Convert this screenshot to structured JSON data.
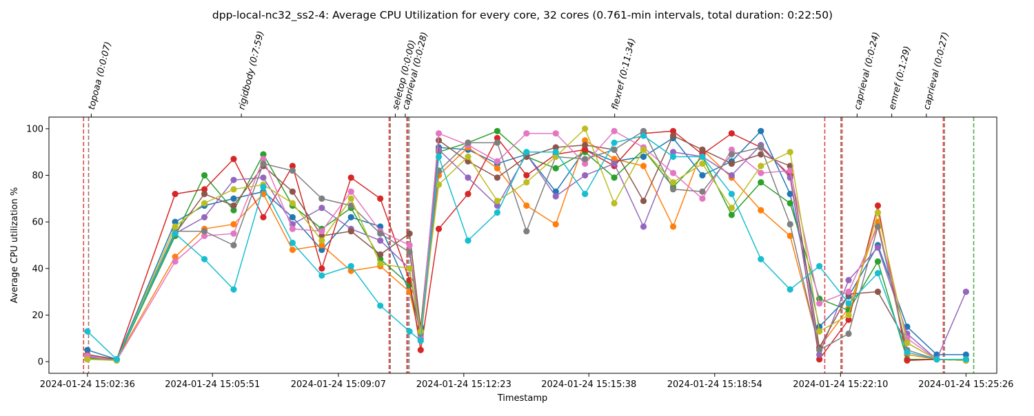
{
  "chart_data": {
    "type": "line",
    "title": "dpp-local-nc32_ss2-4: Average CPU Utilization for every core, 32 cores (0.761-min intervals, total duration: 0:22:50)",
    "xlabel": "Timestamp",
    "ylabel": "Average CPU utilization %",
    "ylim": [
      -5,
      105
    ],
    "yticks": [
      0,
      20,
      40,
      60,
      80,
      100
    ],
    "xtick_labels": [
      "2024-01-24 15:02:36",
      "2024-01-24 15:05:51",
      "2024-01-24 15:09:07",
      "2024-01-24 15:12:23",
      "2024-01-24 15:15:38",
      "2024-01-24 15:18:54",
      "2024-01-24 15:22:10",
      "2024-01-24 15:25:26"
    ],
    "xtick_positions": [
      0,
      3.25,
      6.52,
      9.78,
      13.03,
      16.3,
      19.57,
      22.83
    ],
    "x_unit": "minutes since first xtick",
    "grid": false,
    "legend": "none",
    "markers": "circle",
    "x": [
      0,
      0.76,
      2.28,
      3.04,
      3.8,
      4.57,
      5.33,
      6.09,
      6.85,
      7.61,
      8.37,
      8.66,
      9.13,
      9.89,
      10.65,
      11.41,
      12.17,
      12.93,
      13.69,
      14.45,
      15.22,
      15.98,
      16.74,
      17.5,
      18.26,
      19.02,
      19.78,
      20.54,
      21.3,
      22.07,
      22.83
    ],
    "series": [
      {
        "color": "#1f77b4",
        "values": [
          5,
          1,
          60,
          67,
          70,
          73,
          62,
          48,
          62,
          58,
          30,
          15,
          92,
          91,
          85,
          89,
          73,
          91,
          86,
          88,
          96,
          80,
          86,
          99,
          72,
          15,
          28,
          50,
          15,
          3,
          3
        ]
      },
      {
        "color": "#ff7f0e",
        "values": [
          2,
          1,
          45,
          57,
          59,
          72,
          48,
          50,
          39,
          41,
          30,
          9,
          80,
          92,
          83,
          67,
          59,
          95,
          87,
          84,
          58,
          91,
          79,
          65,
          54,
          6,
          23,
          60,
          3,
          1,
          0.5
        ]
      },
      {
        "color": "#2ca02c",
        "values": [
          1.5,
          0.5,
          54,
          80,
          65,
          89,
          67,
          57,
          66,
          44,
          33,
          12,
          90,
          94,
          99,
          88,
          83,
          90,
          79,
          91,
          75,
          88,
          63,
          77,
          68,
          27,
          22,
          43,
          1,
          1,
          0.5
        ]
      },
      {
        "color": "#d62728",
        "values": [
          3,
          1,
          72,
          74,
          87,
          62,
          84,
          40,
          79,
          70,
          35,
          5,
          57,
          72,
          96,
          80,
          89,
          91,
          84,
          98,
          99,
          89,
          98,
          92,
          80,
          1,
          18,
          67,
          0.5,
          1,
          0.5
        ]
      },
      {
        "color": "#9467bd",
        "values": [
          2,
          1,
          55,
          62,
          78,
          79,
          59,
          66,
          57,
          52,
          40,
          10,
          91,
          79,
          67,
          89,
          71,
          80,
          85,
          58,
          90,
          88,
          80,
          93,
          79,
          3,
          35,
          49,
          12,
          1,
          30
        ]
      },
      {
        "color": "#8c564b",
        "values": [
          3,
          1,
          55,
          72,
          67,
          84,
          73,
          54,
          56,
          46,
          55,
          14,
          95,
          86,
          79,
          88,
          92,
          93,
          91,
          69,
          97,
          91,
          85,
          89,
          84,
          6,
          29,
          30,
          8,
          1,
          1
        ]
      },
      {
        "color": "#e377c2",
        "values": [
          2.5,
          0.5,
          43,
          54,
          55,
          87,
          57,
          56,
          73,
          56,
          50,
          11,
          98,
          93,
          86,
          98,
          98,
          85,
          99,
          92,
          81,
          70,
          91,
          81,
          82,
          25,
          30,
          58,
          10,
          1,
          1
        ]
      },
      {
        "color": "#7f7f7f",
        "values": [
          1,
          1,
          56,
          56,
          50,
          85,
          82,
          70,
          67,
          55,
          47,
          12,
          82,
          94,
          94,
          56,
          88,
          87,
          91,
          99,
          74,
          73,
          89,
          92,
          59,
          5,
          12,
          58,
          5,
          1,
          1
        ]
      },
      {
        "color": "#bcbd22",
        "values": [
          1,
          0.5,
          58,
          68,
          74,
          76,
          68,
          52,
          70,
          42,
          40,
          13,
          76,
          88,
          69,
          77,
          88,
          100,
          68,
          91,
          77,
          85,
          66,
          84,
          90,
          13,
          20,
          64,
          8,
          1,
          0.5
        ]
      },
      {
        "color": "#17becf",
        "values": [
          13,
          1,
          55,
          44,
          31,
          75,
          51,
          37,
          41,
          24,
          13,
          9,
          88,
          52,
          64,
          90,
          90,
          72,
          94,
          97,
          88,
          88,
          72,
          44,
          31,
          41,
          25,
          38,
          4,
          1,
          1
        ]
      }
    ],
    "phase_markers": [
      {
        "label": "topoaa (0:0:07)",
        "x": 0.1,
        "start_color": "#d62728",
        "end_color": "#8c564b"
      },
      {
        "label": "rigidbody (0:7:59)",
        "x": 4.0,
        "start_color": "#d62728",
        "end_color": "#8c564b"
      },
      {
        "label": "seletop (0:0:00)",
        "x": 8.0,
        "start_color": "#8c564b",
        "end_color": "#8c564b"
      },
      {
        "label": "caprieval (0:0:28)",
        "x": 8.26,
        "start_color": "#8c564b",
        "end_color": "#8c564b"
      },
      {
        "label": "flexref (0:11:34)",
        "x": 13.7,
        "start_color": "#d62728",
        "end_color": "#8c564b"
      },
      {
        "label": "caprieval (0:0:24)",
        "x": 20.0,
        "start_color": "#d62728",
        "end_color": "#8c564b"
      },
      {
        "label": "emref (0:1:29)",
        "x": 20.9,
        "start_color": "#d62728",
        "end_color": "#8c564b"
      },
      {
        "label": "caprieval (0:0:27)",
        "x": 21.8,
        "start_color": "#2ca02c",
        "end_color": "#2ca02c"
      }
    ],
    "vlines": [
      {
        "x": -0.1,
        "color": "#d62728"
      },
      {
        "x": 0.03,
        "color": "#8c564b"
      },
      {
        "x": 7.84,
        "color": "#d62728"
      },
      {
        "x": 7.87,
        "color": "#8c564b"
      },
      {
        "x": 8.3,
        "color": "#d62728"
      },
      {
        "x": 8.33,
        "color": "#8c564b"
      },
      {
        "x": 8.36,
        "color": "#7f7f7f"
      },
      {
        "x": 19.16,
        "color": "#d62728"
      },
      {
        "x": 19.58,
        "color": "#8c564b"
      },
      {
        "x": 19.61,
        "color": "#d62728"
      },
      {
        "x": 22.24,
        "color": "#d62728"
      },
      {
        "x": 22.27,
        "color": "#8c564b"
      },
      {
        "x": 23.03,
        "color": "#2ca02c"
      }
    ]
  }
}
